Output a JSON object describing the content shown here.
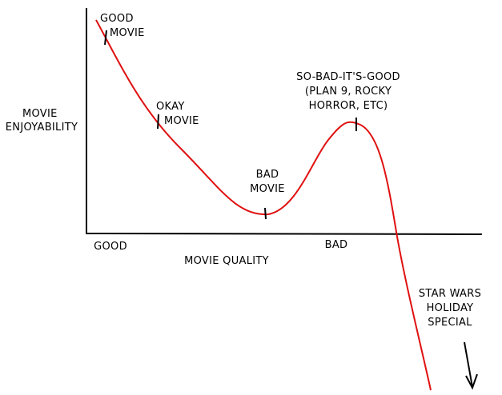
{
  "x_axis": {
    "label": "MOVIE QUALITY",
    "left_label": "GOOD",
    "right_label": "BAD"
  },
  "y_axis": {
    "label": [
      "MOVIE",
      "ENJOYABILITY"
    ]
  },
  "annotations": [
    {
      "lines": [
        "GOOD",
        "MOVIE"
      ]
    },
    {
      "lines": [
        "OKAY",
        "MOVIE"
      ]
    },
    {
      "lines": [
        "BAD",
        "MOVIE"
      ]
    },
    {
      "lines": [
        "SO-BAD-IT'S-GOOD",
        "(PLAN 9, ROCKY",
        "HORROR, ETC)"
      ]
    },
    {
      "lines": [
        "STAR WARS",
        "HOLIDAY",
        "SPECIAL"
      ]
    }
  ]
}
